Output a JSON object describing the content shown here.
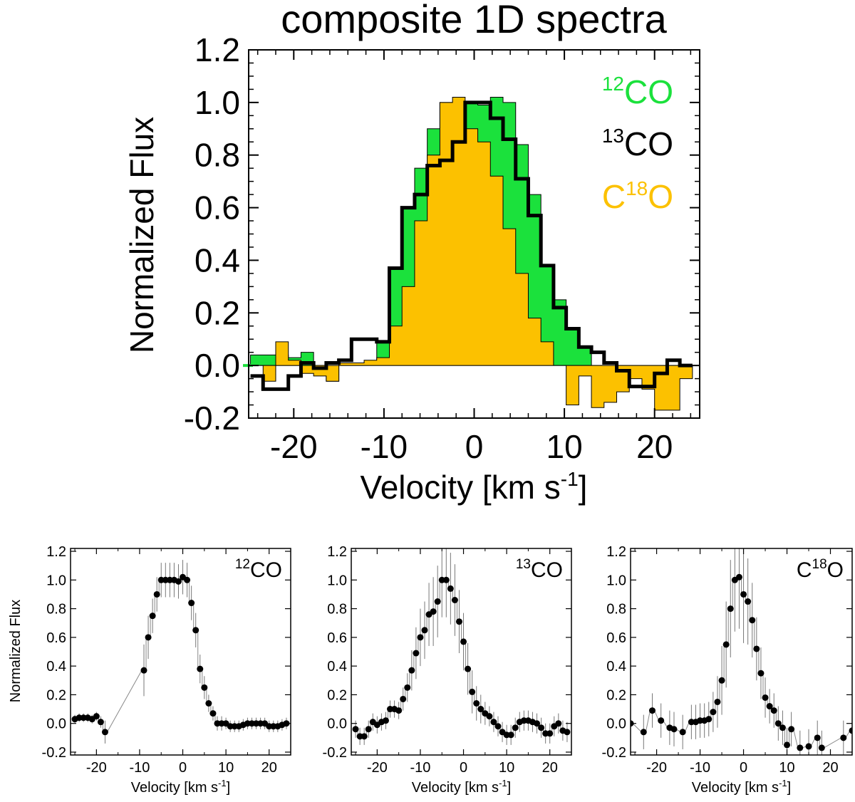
{
  "chart_data": [
    {
      "type": "step",
      "title": "composite 1D spectra",
      "xlabel": "Velocity [km s",
      "xlabel_sup": "-1",
      "xlabel_end": "]",
      "ylabel": "Normalized Flux",
      "xlim": [
        -25,
        25
      ],
      "ylim": [
        -0.2,
        1.2
      ],
      "xticks": [
        -20,
        -10,
        0,
        10,
        20
      ],
      "xtick_labels": [
        "-20",
        "-10",
        "0",
        "10",
        "20"
      ],
      "yticks": [
        -0.2,
        0.0,
        0.2,
        0.4,
        0.6,
        0.8,
        1.0,
        1.2
      ],
      "ytick_labels": [
        "-0.2",
        "0.0",
        "0.2",
        "0.4",
        "0.6",
        "0.8",
        "1.0",
        "1.2"
      ],
      "legend_position": "top-right",
      "series": [
        {
          "name": "12CO",
          "label_sup": "12",
          "label_base": "CO",
          "color": "#1be13c",
          "style": "filled",
          "x": [
            -24.1,
            -22.7,
            -21.3,
            -19.9,
            -18.5,
            -17.1,
            -15.7,
            -14.3,
            -12.9,
            -11.5,
            -10.1,
            -8.7,
            -7.3,
            -5.9,
            -4.5,
            -3.1,
            -1.7,
            -0.3,
            1.1,
            2.5,
            3.9,
            5.3,
            6.7,
            8.1,
            9.5,
            10.9,
            12.3,
            13.7,
            15.1,
            16.5,
            17.9,
            19.3,
            20.7,
            22.1,
            23.5
          ],
          "y": [
            0.04,
            0.04,
            0.04,
            0.03,
            0.05,
            -0.02,
            -0.06,
            0.01,
            0.01,
            0.01,
            0.09,
            0.37,
            0.6,
            0.75,
            0.9,
            1.0,
            1.0,
            1.0,
            0.99,
            1.02,
            1.0,
            0.84,
            0.65,
            0.38,
            0.25,
            0.14,
            0.07,
            0.0,
            0.0,
            0.0,
            -0.02,
            -0.02,
            -0.02,
            -0.01,
            0.0
          ]
        },
        {
          "name": "13CO",
          "label_sup": "13",
          "label_base": "CO",
          "color": "#000000",
          "style": "line",
          "x": [
            -24.1,
            -22.7,
            -21.3,
            -19.9,
            -18.5,
            -17.1,
            -15.7,
            -14.3,
            -12.9,
            -11.5,
            -10.1,
            -8.7,
            -7.3,
            -5.9,
            -4.5,
            -3.1,
            -1.7,
            -0.3,
            1.1,
            2.5,
            3.9,
            5.3,
            6.7,
            8.1,
            9.5,
            10.9,
            12.3,
            13.7,
            15.1,
            16.5,
            17.9,
            19.3,
            20.7,
            22.1,
            23.5
          ],
          "y": [
            -0.04,
            -0.09,
            -0.09,
            -0.04,
            0.01,
            -0.01,
            0.01,
            0.02,
            0.1,
            0.1,
            0.09,
            0.37,
            0.6,
            0.65,
            0.76,
            0.78,
            0.85,
            1.0,
            1.0,
            0.94,
            0.86,
            0.71,
            0.57,
            0.38,
            0.22,
            0.14,
            0.07,
            0.05,
            0.01,
            -0.02,
            -0.08,
            -0.08,
            -0.03,
            0.02,
            0.0
          ]
        },
        {
          "name": "C18O",
          "label_base": "C",
          "label_sup": "18",
          "label_end": "O",
          "color": "#fcc100",
          "style": "filled",
          "x": [
            -24.1,
            -22.7,
            -21.3,
            -19.9,
            -18.5,
            -17.1,
            -15.7,
            -14.3,
            -12.9,
            -11.5,
            -10.1,
            -8.7,
            -7.3,
            -5.9,
            -4.5,
            -3.1,
            -1.7,
            -0.3,
            1.1,
            2.5,
            3.9,
            5.3,
            6.7,
            8.1,
            9.5,
            10.9,
            12.3,
            13.7,
            15.1,
            16.5,
            17.9,
            19.3,
            20.7,
            22.1,
            23.5
          ],
          "y": [
            0.0,
            -0.06,
            0.09,
            0.02,
            -0.03,
            -0.04,
            -0.06,
            0.01,
            0.01,
            0.02,
            0.03,
            0.15,
            0.3,
            0.55,
            0.8,
            1.0,
            1.02,
            0.9,
            0.85,
            0.72,
            0.52,
            0.35,
            0.18,
            0.09,
            0.0,
            -0.15,
            -0.04,
            -0.16,
            -0.14,
            -0.1,
            -0.05,
            -0.09,
            -0.17,
            -0.17,
            -0.05
          ]
        }
      ]
    },
    {
      "type": "scatter",
      "label_sup": "12",
      "label_base": "CO",
      "ylabel": "Normalized Flux",
      "xlabel": "Velocity [km s",
      "xlabel_sup": "-1",
      "xlabel_end": "]",
      "xlim": [
        -26,
        25
      ],
      "ylim": [
        -0.22,
        1.22
      ],
      "xticks": [
        -20,
        -10,
        0,
        10,
        20
      ],
      "xtick_labels": [
        "-20",
        "-10",
        "0",
        "10",
        "20"
      ],
      "yticks": [
        -0.2,
        0.0,
        0.2,
        0.4,
        0.6,
        0.8,
        1.0,
        1.2
      ],
      "ytick_labels": [
        "-0.2",
        "0.0",
        "0.2",
        "0.4",
        "0.6",
        "0.8",
        "1.0",
        "1.2"
      ],
      "x": [
        -25.0,
        -24.0,
        -23.0,
        -22.0,
        -21.0,
        -20.0,
        -19.0,
        -18.0,
        -9.0,
        -8.0,
        -7.0,
        -6.0,
        -5.0,
        -4.0,
        -3.0,
        -2.0,
        -1.0,
        0.0,
        1.0,
        2.0,
        3.0,
        4.0,
        5.0,
        6.0,
        7.0,
        8.0,
        9.0,
        10.0,
        11.0,
        12.0,
        13.0,
        14.0,
        15.0,
        16.0,
        17.0,
        18.0,
        19.0,
        20.0,
        21.0,
        22.0,
        23.0,
        24.0
      ],
      "y": [
        0.03,
        0.04,
        0.04,
        0.04,
        0.03,
        0.05,
        0.01,
        -0.06,
        0.37,
        0.6,
        0.75,
        0.9,
        1.0,
        1.0,
        1.0,
        1.0,
        0.99,
        1.02,
        1.0,
        0.84,
        0.65,
        0.38,
        0.25,
        0.14,
        0.07,
        0.0,
        0.0,
        0.0,
        -0.02,
        -0.02,
        -0.02,
        -0.01,
        0.0,
        0.0,
        0.0,
        0.0,
        0.0,
        -0.02,
        -0.02,
        -0.02,
        -0.01,
        0.0
      ],
      "err": [
        0.03,
        0.03,
        0.03,
        0.03,
        0.03,
        0.03,
        0.04,
        0.08,
        0.18,
        0.15,
        0.12,
        0.12,
        0.12,
        0.12,
        0.12,
        0.12,
        0.12,
        0.12,
        0.12,
        0.12,
        0.12,
        0.1,
        0.08,
        0.06,
        0.05,
        0.05,
        0.05,
        0.04,
        0.04,
        0.04,
        0.04,
        0.04,
        0.04,
        0.04,
        0.04,
        0.04,
        0.04,
        0.04,
        0.04,
        0.04,
        0.04,
        0.04
      ]
    },
    {
      "type": "scatter",
      "label_sup": "13",
      "label_base": "CO",
      "xlabel": "Velocity [km s",
      "xlabel_sup": "-1",
      "xlabel_end": "]",
      "xlim": [
        -26,
        25
      ],
      "ylim": [
        -0.22,
        1.22
      ],
      "xticks": [
        -20,
        -10,
        0,
        10,
        20
      ],
      "xtick_labels": [
        "-20",
        "-10",
        "0",
        "10",
        "20"
      ],
      "yticks": [
        -0.2,
        0.0,
        0.2,
        0.4,
        0.6,
        0.8,
        1.0,
        1.2
      ],
      "ytick_labels": [
        "-0.2",
        "0.0",
        "0.2",
        "0.4",
        "0.6",
        "0.8",
        "1.0",
        "1.2"
      ],
      "x": [
        -25.0,
        -24.0,
        -23.0,
        -22.0,
        -21.0,
        -20.0,
        -19.0,
        -18.0,
        -17.0,
        -16.0,
        -15.0,
        -14.0,
        -13.0,
        -12.0,
        -11.0,
        -10.0,
        -9.0,
        -8.0,
        -7.0,
        -6.0,
        -5.0,
        -4.0,
        -3.0,
        -2.0,
        -1.0,
        0.0,
        1.0,
        2.0,
        3.0,
        4.0,
        5.0,
        6.0,
        7.0,
        8.0,
        9.0,
        10.0,
        11.0,
        12.0,
        13.0,
        14.0,
        15.0,
        16.0,
        17.0,
        18.0,
        19.0,
        20.0,
        21.0,
        22.0,
        23.0,
        24.0
      ],
      "y": [
        -0.04,
        -0.09,
        -0.09,
        -0.04,
        0.01,
        -0.01,
        0.01,
        0.02,
        0.1,
        0.1,
        0.09,
        0.17,
        0.25,
        0.37,
        0.49,
        0.6,
        0.65,
        0.76,
        0.78,
        0.85,
        1.0,
        1.0,
        0.94,
        0.86,
        0.71,
        0.57,
        0.38,
        0.22,
        0.14,
        0.1,
        0.07,
        0.05,
        0.01,
        -0.02,
        -0.06,
        -0.08,
        -0.08,
        -0.03,
        0.01,
        0.02,
        0.02,
        0.01,
        0.0,
        -0.03,
        -0.07,
        -0.07,
        -0.02,
        0.0,
        -0.05,
        -0.06
      ],
      "err": [
        0.06,
        0.06,
        0.06,
        0.06,
        0.06,
        0.06,
        0.06,
        0.06,
        0.06,
        0.06,
        0.06,
        0.08,
        0.1,
        0.14,
        0.18,
        0.2,
        0.2,
        0.22,
        0.24,
        0.25,
        0.26,
        0.26,
        0.25,
        0.25,
        0.22,
        0.2,
        0.18,
        0.15,
        0.12,
        0.1,
        0.08,
        0.07,
        0.07,
        0.07,
        0.07,
        0.07,
        0.07,
        0.07,
        0.07,
        0.07,
        0.07,
        0.07,
        0.07,
        0.07,
        0.07,
        0.07,
        0.07,
        0.07,
        0.07,
        0.07
      ]
    },
    {
      "type": "scatter",
      "label_base": "C",
      "label_sup": "18",
      "label_end": "O",
      "xlabel": "Velocity [km s",
      "xlabel_sup": "-1",
      "xlabel_end": "]",
      "xlim": [
        -26,
        25
      ],
      "ylim": [
        -0.22,
        1.22
      ],
      "xticks": [
        -20,
        -10,
        0,
        10,
        20
      ],
      "xtick_labels": [
        "-20",
        "-10",
        "0",
        "10",
        "20"
      ],
      "yticks": [
        -0.2,
        0.0,
        0.2,
        0.4,
        0.6,
        0.8,
        1.0,
        1.2
      ],
      "ytick_labels": [
        "-0.2",
        "0.0",
        "0.2",
        "0.4",
        "0.6",
        "0.8",
        "1.0",
        "1.2"
      ],
      "x": [
        -26.0,
        -23.0,
        -21.0,
        -19.0,
        -17.0,
        -16.0,
        -14.0,
        -12.0,
        -11.0,
        -10.0,
        -9.0,
        -8.0,
        -7.0,
        -6.0,
        -5.0,
        -4.0,
        -3.0,
        -2.0,
        -1.0,
        0.0,
        1.0,
        2.0,
        3.0,
        4.0,
        5.0,
        6.0,
        7.0,
        8.0,
        9.0,
        10.0,
        11.0,
        13.0,
        15.0,
        17.0,
        18.0,
        23.0,
        25.0
      ],
      "y": [
        0.0,
        -0.06,
        0.09,
        0.02,
        -0.03,
        -0.04,
        -0.06,
        0.01,
        0.01,
        0.02,
        0.02,
        0.03,
        0.08,
        0.15,
        0.3,
        0.55,
        0.8,
        1.0,
        1.02,
        0.9,
        0.85,
        0.72,
        0.52,
        0.35,
        0.18,
        0.12,
        0.09,
        0.0,
        -0.03,
        -0.15,
        -0.04,
        -0.17,
        -0.16,
        -0.1,
        -0.17,
        -0.1,
        -0.05
      ],
      "err": [
        0.12,
        0.12,
        0.12,
        0.12,
        0.12,
        0.12,
        0.12,
        0.12,
        0.12,
        0.12,
        0.12,
        0.12,
        0.14,
        0.18,
        0.24,
        0.3,
        0.34,
        0.36,
        0.36,
        0.34,
        0.3,
        0.26,
        0.22,
        0.18,
        0.14,
        0.12,
        0.12,
        0.12,
        0.12,
        0.12,
        0.12,
        0.12,
        0.12,
        0.12,
        0.12,
        0.12,
        0.12
      ]
    }
  ]
}
